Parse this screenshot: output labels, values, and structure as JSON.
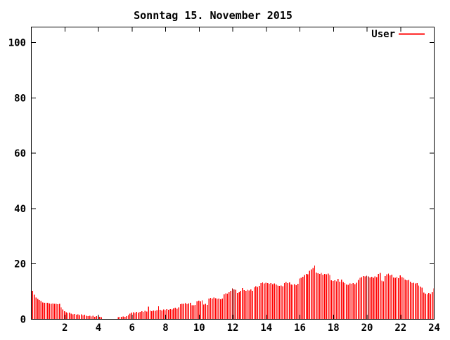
{
  "chart_data": {
    "type": "bar",
    "title": "Sonntag 15. November 2015",
    "legend": {
      "label": "User",
      "position": "top-right",
      "line_color": "#ff0000"
    },
    "xlabel": "",
    "ylabel": "",
    "xlim": [
      0,
      24
    ],
    "ylim": [
      0,
      105
    ],
    "x_ticks": [
      2,
      4,
      6,
      8,
      10,
      12,
      14,
      16,
      18,
      20,
      22,
      24
    ],
    "y_ticks": [
      0,
      20,
      40,
      60,
      80,
      100
    ],
    "grid": false,
    "background": "#ffffff",
    "border_color": "#000000",
    "bar_color": "#ff0000",
    "dark_bar_color": "#aa0000",
    "dark_bar_indices": [
      119,
      120,
      199,
      200
    ],
    "sample_interval_hours": 0.1,
    "first_sample_hour": 0.1,
    "values": [
      10.2,
      8.8,
      7.8,
      7.2,
      6.8,
      6.5,
      6.0,
      5.8,
      5.9,
      5.8,
      5.6,
      5.5,
      5.6,
      5.4,
      5.5,
      5.3,
      5.5,
      4.2,
      3.4,
      2.8,
      2.4,
      2.2,
      2.3,
      1.9,
      1.7,
      1.8,
      1.5,
      1.7,
      1.4,
      1.6,
      1.3,
      1.5,
      1.2,
      1.0,
      1.2,
      0.9,
      1.1,
      0.8,
      1.0,
      0.9,
      0.7,
      0.6,
      0.0,
      0.0,
      0.0,
      0.0,
      0.0,
      0.0,
      0.0,
      0.0,
      0.0,
      0.6,
      0.8,
      0.7,
      0.9,
      0.8,
      1.0,
      1.4,
      1.9,
      2.3,
      2.4,
      2.2,
      2.5,
      2.3,
      2.6,
      2.8,
      2.5,
      2.9,
      2.7,
      4.4,
      3.0,
      2.8,
      3.1,
      2.9,
      3.2,
      4.6,
      3.3,
      3.1,
      3.4,
      3.2,
      3.5,
      3.3,
      3.6,
      3.4,
      3.8,
      4.0,
      3.7,
      4.2,
      5.3,
      5.5,
      5.4,
      5.7,
      5.3,
      5.6,
      5.8,
      5.0,
      4.9,
      5.1,
      6.3,
      6.6,
      6.4,
      6.7,
      5.2,
      5.4,
      5.1,
      7.4,
      7.6,
      7.3,
      7.7,
      7.5,
      7.2,
      7.4,
      7.1,
      7.3,
      8.9,
      9.3,
      9.1,
      9.6,
      10.1,
      11.1,
      10.7,
      10.5,
      9.4,
      9.6,
      10.2,
      11.2,
      10.4,
      10.1,
      10.5,
      10.3,
      10.6,
      10.2,
      11.4,
      11.8,
      11.5,
      11.9,
      12.9,
      13.2,
      12.8,
      13.1,
      13.0,
      12.7,
      12.9,
      12.6,
      12.8,
      12.4,
      12.0,
      11.9,
      12.1,
      11.8,
      13.0,
      13.3,
      12.9,
      13.2,
      12.5,
      12.3,
      12.6,
      12.2,
      12.7,
      14.6,
      14.9,
      15.2,
      15.9,
      16.3,
      16.1,
      17.4,
      17.9,
      18.4,
      19.3,
      16.8,
      16.5,
      16.2,
      16.6,
      16.0,
      16.3,
      16.1,
      16.4,
      15.9,
      14.0,
      13.7,
      13.9,
      13.6,
      14.5,
      13.4,
      14.2,
      13.3,
      12.9,
      12.5,
      12.3,
      12.8,
      12.7,
      13.0,
      12.6,
      13.1,
      14.1,
      14.8,
      15.1,
      15.5,
      15.3,
      15.6,
      15.4,
      15.0,
      15.2,
      14.9,
      15.3,
      15.1,
      16.3,
      16.6,
      13.8,
      13.6,
      15.5,
      16.1,
      16.4,
      15.8,
      16.0,
      15.0,
      14.8,
      15.2,
      14.7,
      15.8,
      15.1,
      14.9,
      14.2,
      13.9,
      14.1,
      13.5,
      12.9,
      13.1,
      12.8,
      13.0,
      12.0,
      11.7,
      11.3,
      9.5,
      9.2,
      8.9,
      9.4,
      9.0,
      9.6,
      11.1
    ]
  }
}
